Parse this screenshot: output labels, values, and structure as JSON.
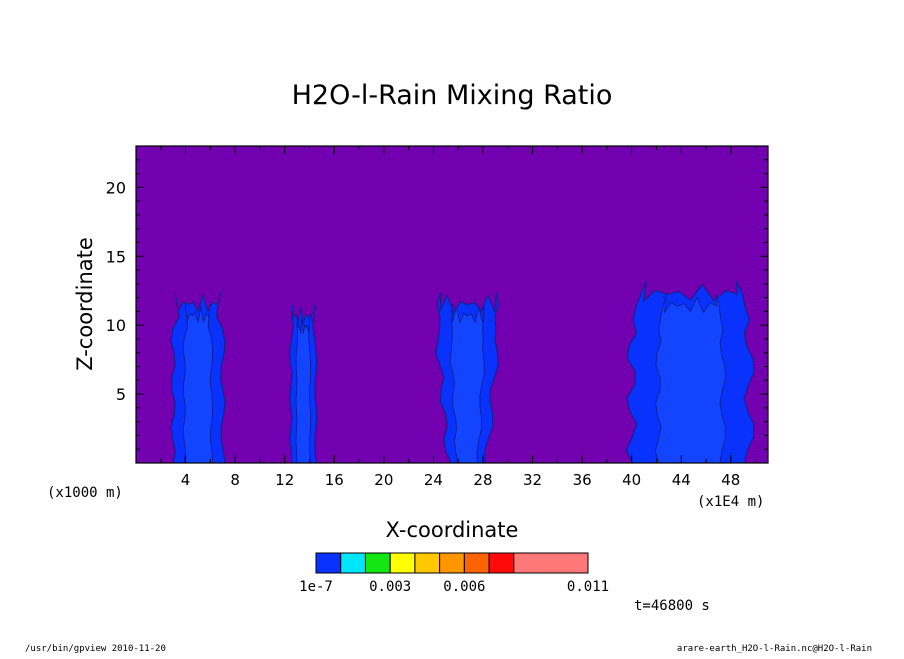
{
  "chart_data": {
    "type": "heatmap",
    "title": "H2O-l-Rain Mixing Ratio",
    "xlabel": "X-coordinate",
    "ylabel": "Z-coordinate",
    "x_unit_left": "(x1000 m)",
    "x_unit_right": "(x1E4 m)",
    "xlim": [
      0,
      51
    ],
    "ylim": [
      0,
      23
    ],
    "x_ticks": [
      4,
      8,
      12,
      16,
      20,
      24,
      28,
      32,
      36,
      40,
      44,
      48
    ],
    "y_ticks": [
      5,
      10,
      15,
      20
    ],
    "background_color": "#7300b0",
    "colorbar": {
      "colors": [
        "#0a32ff",
        "#00e6ff",
        "#14e614",
        "#ffff00",
        "#ffc800",
        "#ff9600",
        "#ff6400",
        "#ff0a0a",
        "#ff7878"
      ],
      "labels": [
        {
          "text": "1e-7",
          "value": 1e-07
        },
        {
          "text": "0.003",
          "value": 0.003
        },
        {
          "text": "0.006",
          "value": 0.006
        },
        {
          "text": "0.011",
          "value": 0.011
        }
      ]
    },
    "series": [
      {
        "name": "",
        "x_range": [
          3,
          7
        ],
        "z_top": 12.4,
        "level": "1e-7"
      },
      {
        "name": "",
        "x_range": [
          12.5,
          14.5
        ],
        "z_top": 11.5,
        "level": "1e-7"
      },
      {
        "name": "",
        "x_range": [
          24,
          29.5
        ],
        "z_top": 12.4,
        "level": "1e-7"
      },
      {
        "name": "",
        "x_range": [
          40,
          49.5
        ],
        "z_top": 13.2,
        "level": "1e-7"
      }
    ]
  },
  "time_label": "t=46800 s",
  "footer": {
    "left": "/usr/bin/gpview   2010-11-20",
    "right": "arare-earth_H2O-l-Rain.nc@H2O-l-Rain"
  }
}
